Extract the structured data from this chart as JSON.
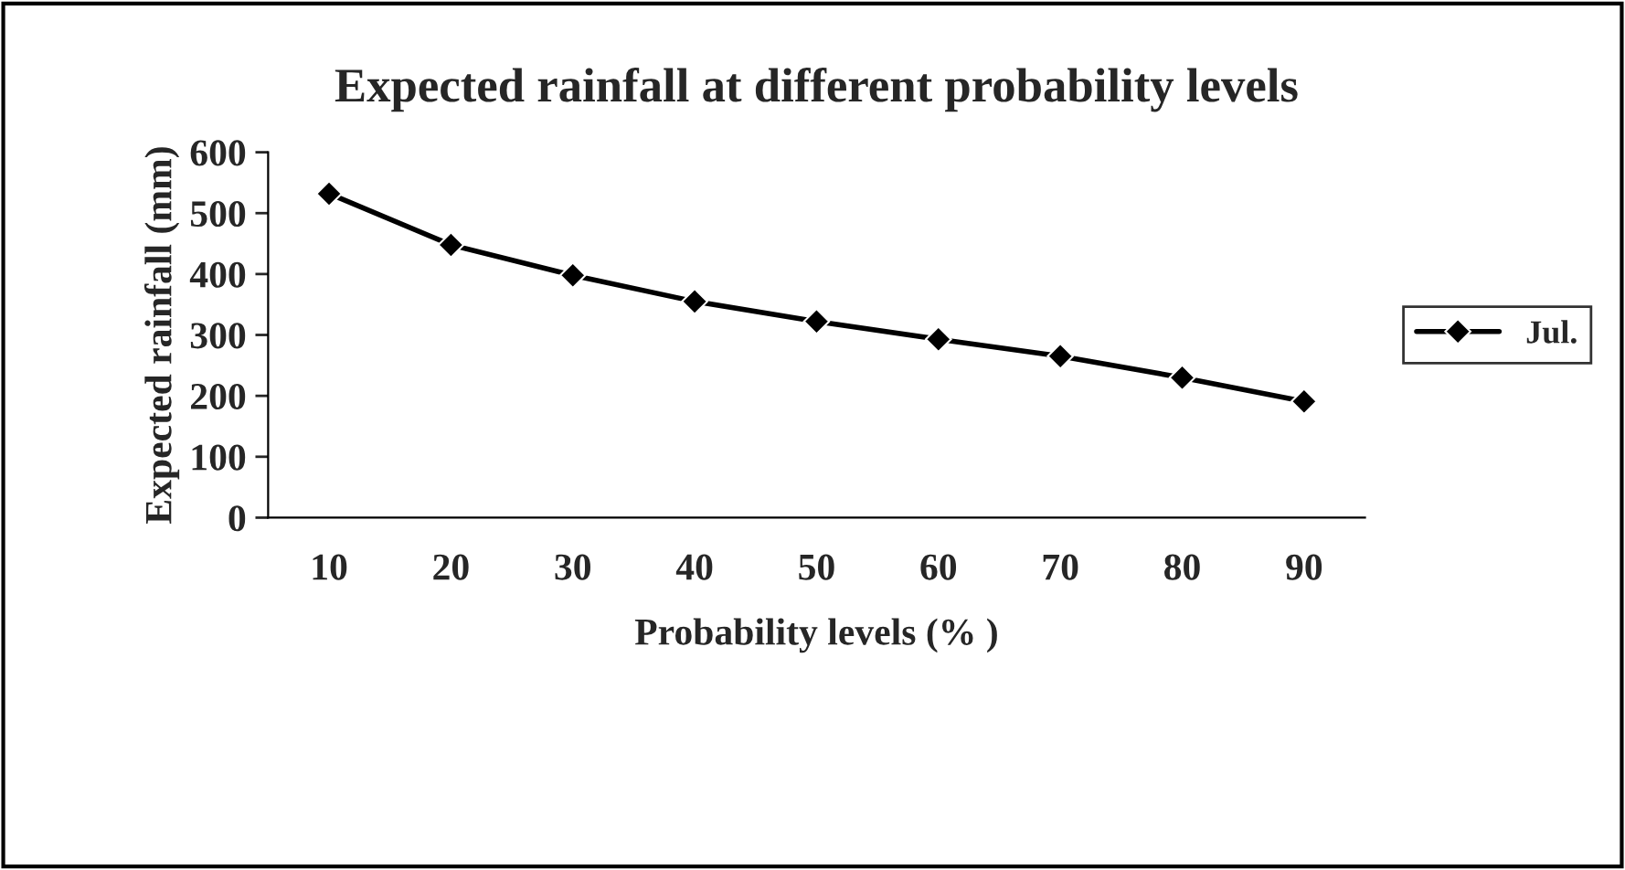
{
  "chart_data": {
    "type": "line",
    "title": "Expected rainfall at different probability levels",
    "xlabel": "Probability levels (% )",
    "ylabel": "Expected rainfall (mm)",
    "categories": [
      "10",
      "20",
      "30",
      "40",
      "50",
      "60",
      "70",
      "80",
      "90"
    ],
    "series": [
      {
        "name": "Jul.",
        "color": "#000000",
        "values": [
          532,
          448,
          398,
          355,
          322,
          293,
          265,
          230,
          191
        ]
      }
    ],
    "ylim": [
      0,
      600
    ],
    "yticks": [
      0,
      100,
      200,
      300,
      400,
      500,
      600
    ],
    "grid": false,
    "legend": "right",
    "marker": "diamond",
    "line_style": "solid"
  }
}
